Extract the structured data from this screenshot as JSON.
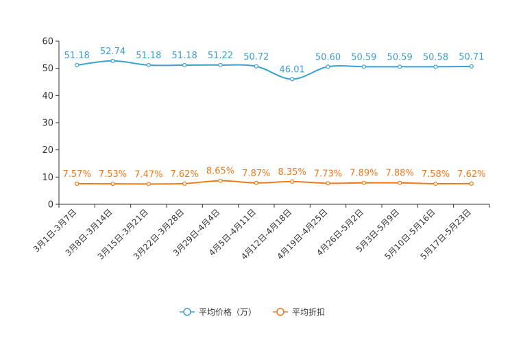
{
  "chart_data": {
    "type": "line",
    "title": "",
    "xlabel": "",
    "ylabel": "",
    "ylim": [
      0,
      60
    ],
    "yticks": [
      0,
      10,
      20,
      30,
      40,
      50,
      60
    ],
    "grid": false,
    "categories": [
      "3月1日-3月7日",
      "3月8日-3月14日",
      "3月15日-3月21日",
      "3月22日-3月28日",
      "3月29日-4月4日",
      "4月5日-4月11日",
      "4月12日-4月18日",
      "4月19日-4月25日",
      "4月26日-5月2日",
      "5月3日-5月9日",
      "5月10日-5月16日",
      "5月17日-5月23日"
    ],
    "series": [
      {
        "name": "平均价格（万）",
        "color": "#3a9fd3",
        "values": [
          51.18,
          52.74,
          51.18,
          51.18,
          51.22,
          50.72,
          46.01,
          50.6,
          50.59,
          50.59,
          50.58,
          50.71
        ],
        "labels": [
          "51.18",
          "52.74",
          "51.18",
          "51.18",
          "51.22",
          "50.72",
          "46.01",
          "50.60",
          "50.59",
          "50.59",
          "50.58",
          "50.71"
        ]
      },
      {
        "name": "平均折扣",
        "color": "#f07818",
        "values": [
          7.57,
          7.53,
          7.47,
          7.62,
          8.65,
          7.87,
          8.35,
          7.73,
          7.89,
          7.88,
          7.58,
          7.62
        ],
        "labels": [
          "7.57%",
          "7.53%",
          "7.47%",
          "7.62%",
          "8.65%",
          "7.87%",
          "8.35%",
          "7.73%",
          "7.89%",
          "7.88%",
          "7.58%",
          "7.62%"
        ]
      }
    ],
    "legend_position": "bottom-center"
  }
}
